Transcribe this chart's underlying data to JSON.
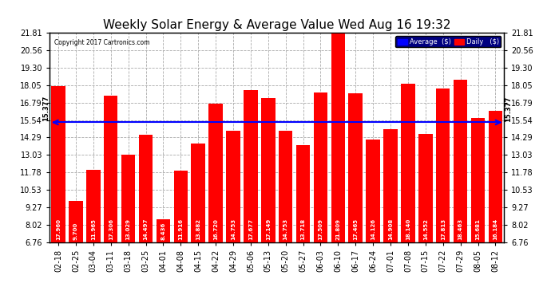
{
  "title": "Weekly Solar Energy & Average Value Wed Aug 16 19:32",
  "copyright": "Copyright 2017 Cartronics.com",
  "categories": [
    "02-18",
    "02-25",
    "03-04",
    "03-11",
    "03-18",
    "03-25",
    "04-01",
    "04-08",
    "04-15",
    "04-22",
    "04-29",
    "05-06",
    "05-13",
    "05-20",
    "05-27",
    "06-03",
    "06-10",
    "06-17",
    "06-24",
    "07-01",
    "07-08",
    "07-15",
    "07-22",
    "07-29",
    "08-05",
    "08-12"
  ],
  "values": [
    17.96,
    9.7,
    11.965,
    17.306,
    13.029,
    14.497,
    8.436,
    11.916,
    13.882,
    16.72,
    14.753,
    17.677,
    17.149,
    14.753,
    13.718,
    17.509,
    21.809,
    17.465,
    14.126,
    14.908,
    18.14,
    14.552,
    17.813,
    18.463,
    15.681,
    16.184
  ],
  "average": 15.377,
  "bar_color": "#FF0000",
  "average_color": "#0000FF",
  "background_color": "#FFFFFF",
  "plot_bg_color": "#FFFFFF",
  "grid_color": "#AAAAAA",
  "yticks": [
    6.76,
    8.02,
    9.27,
    10.53,
    11.78,
    13.03,
    14.29,
    15.54,
    16.79,
    18.05,
    19.3,
    20.56,
    21.81
  ],
  "ylim": [
    6.76,
    21.81
  ],
  "ymin": 6.76,
  "title_fontsize": 11,
  "bar_label_fontsize": 5.0,
  "tick_fontsize": 7,
  "legend_avg_label": "Average  ($)",
  "legend_daily_label": "Daily   ($)"
}
